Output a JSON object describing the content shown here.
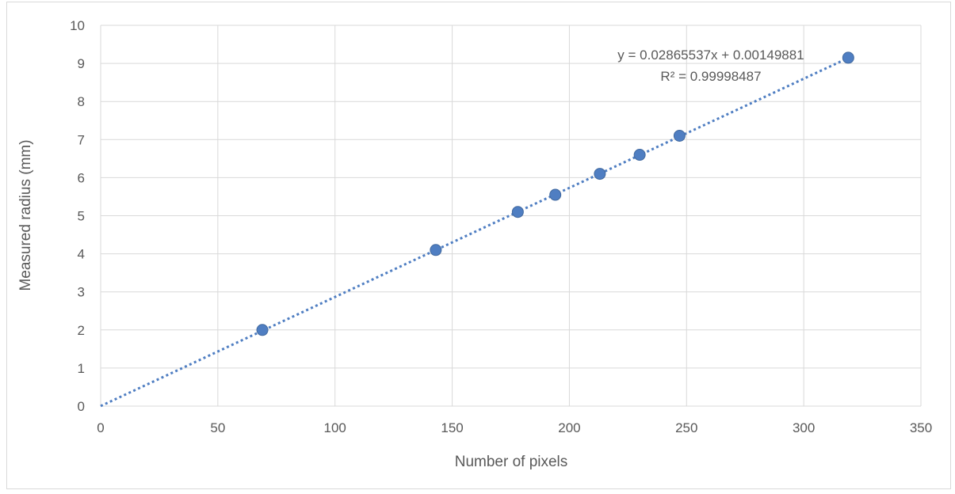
{
  "chart_data": {
    "type": "scatter",
    "title": "",
    "xlabel": "Number of pixels",
    "ylabel": "Measured radius (mm)",
    "xlim": [
      0,
      350
    ],
    "ylim": [
      0,
      10
    ],
    "xticks": [
      0,
      50,
      100,
      150,
      200,
      250,
      300,
      350
    ],
    "yticks": [
      0,
      1,
      2,
      3,
      4,
      5,
      6,
      7,
      8,
      9,
      10
    ],
    "grid": true,
    "legend": "none",
    "points": [
      {
        "x": 69,
        "y": 2.0
      },
      {
        "x": 143,
        "y": 4.1
      },
      {
        "x": 178,
        "y": 5.1
      },
      {
        "x": 194,
        "y": 5.55
      },
      {
        "x": 213,
        "y": 6.1
      },
      {
        "x": 230,
        "y": 6.6
      },
      {
        "x": 247,
        "y": 7.1
      },
      {
        "x": 319,
        "y": 9.15
      }
    ],
    "trendline": {
      "type": "linear",
      "slope": 0.02865537,
      "intercept": 0.00149881,
      "x_range": [
        0,
        320
      ],
      "style": "dotted"
    },
    "annotations": {
      "equation": "y = 0.02865537x + 0.00149881",
      "r_squared": "R² = 0.99998487"
    },
    "colors": {
      "marker": "#4f7ec2",
      "trendline": "#4f7ec2",
      "gridline": "#d9d9d9",
      "text": "#595959"
    }
  }
}
